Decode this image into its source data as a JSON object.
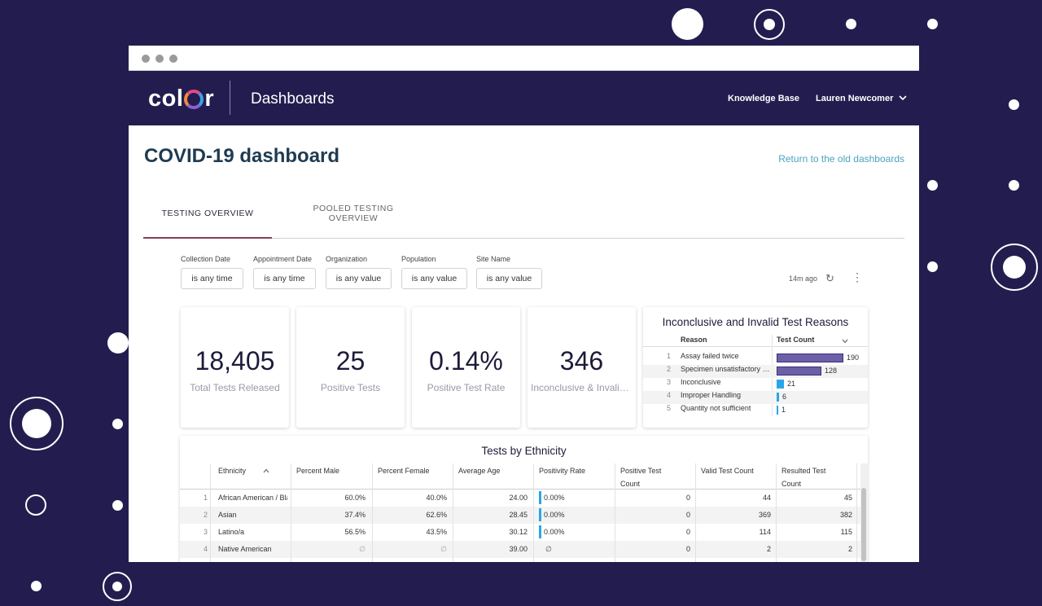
{
  "header": {
    "logo": "color",
    "app_title": "Dashboards",
    "knowledge_base": "Knowledge Base",
    "user_name": "Lauren Newcomer"
  },
  "page": {
    "title": "COVID-19 dashboard",
    "return_link": "Return to the old dashboards"
  },
  "tabs": [
    {
      "label": "TESTING OVERVIEW"
    },
    {
      "label_line1": "POOLED TESTING",
      "label_line2": "OVERVIEW"
    }
  ],
  "filters": [
    {
      "label": "Collection Date",
      "value": "is any time"
    },
    {
      "label": "Appointment Date",
      "value": "is any time"
    },
    {
      "label": "Organization",
      "value": "is any value"
    },
    {
      "label": "Population",
      "value": "is any value"
    },
    {
      "label": "Site Name",
      "value": "is any value"
    }
  ],
  "last_updated": "14m ago",
  "cards": [
    {
      "value": "18,405",
      "label": "Total Tests Released"
    },
    {
      "value": "25",
      "label": "Positive Tests"
    },
    {
      "value": "0.14%",
      "label": "Positive Test Rate"
    },
    {
      "value": "346",
      "label": "Inconclusive & Invalid Tests"
    }
  ],
  "reasons": {
    "title": "Inconclusive and Invalid Test Reasons",
    "col_reason": "Reason",
    "col_count": "Test Count",
    "max": 190,
    "rows": [
      {
        "num": "1",
        "reason": "Assay failed twice",
        "count": 190
      },
      {
        "num": "2",
        "reason": "Specimen unsatisfactory for testing",
        "count": 128
      },
      {
        "num": "3",
        "reason": "Inconclusive",
        "count": 21
      },
      {
        "num": "4",
        "reason": "Improper Handling",
        "count": 6
      },
      {
        "num": "5",
        "reason": "Quantity not sufficient",
        "count": 1
      }
    ]
  },
  "ethnicity": {
    "title": "Tests by Ethnicity",
    "headers": {
      "ethnicity": "Ethnicity",
      "pct_male": "Percent Male",
      "pct_female": "Percent Female",
      "avg_age": "Average Age",
      "positivity": "Positivity Rate",
      "positive_l1": "Positive Test",
      "positive_l2": "Count",
      "valid": "Valid Test Count",
      "resulted_l1": "Resulted Test",
      "resulted_l2": "Count"
    },
    "null_symbol": "∅",
    "rows": [
      {
        "num": "1",
        "ethnicity": "African American / Black",
        "male": "60.0%",
        "female": "40.0%",
        "age": "24.00",
        "positivity": "0.00%",
        "positive": "0",
        "valid": "44",
        "resulted": "45"
      },
      {
        "num": "2",
        "ethnicity": "Asian",
        "male": "37.4%",
        "female": "62.6%",
        "age": "28.45",
        "positivity": "0.00%",
        "positive": "0",
        "valid": "369",
        "resulted": "382"
      },
      {
        "num": "3",
        "ethnicity": "Latino/a",
        "male": "56.5%",
        "female": "43.5%",
        "age": "30.12",
        "positivity": "0.00%",
        "positive": "0",
        "valid": "114",
        "resulted": "115"
      },
      {
        "num": "4",
        "ethnicity": "Native American",
        "male": "∅",
        "female": "∅",
        "age": "39.00",
        "positivity": "∅",
        "positive": "0",
        "valid": "2",
        "resulted": "2"
      }
    ]
  },
  "colors": {
    "background": "#231d4f",
    "bar_purple": "#6c5fa8",
    "bar_blue": "#2aa6e8",
    "title": "#1f3b50",
    "link": "#4aa3bd"
  }
}
